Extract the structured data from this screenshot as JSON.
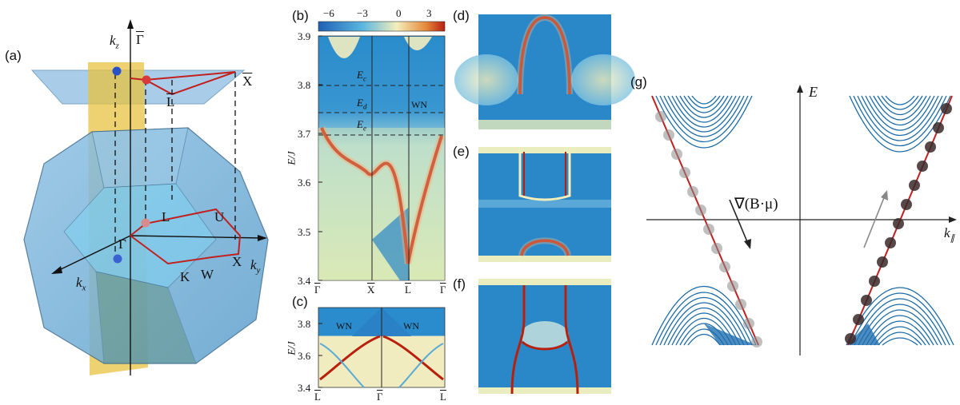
{
  "panels": {
    "a": "(a)",
    "b": "(b)",
    "c": "(c)",
    "d": "(d)",
    "e": "(e)",
    "f": "(f)",
    "g": "(g)"
  },
  "panel_a": {
    "kz": "k",
    "kz_sub": "z",
    "kx": "k",
    "kx_sub": "x",
    "ky": "k",
    "ky_sub": "y",
    "gamma_bar": "Γ",
    "x_bar": "X",
    "l_bar": "L",
    "points": {
      "L": "L",
      "U": "U",
      "Gamma": "Γ",
      "X": "X",
      "K": "K",
      "W": "W"
    }
  },
  "chart_data": [
    {
      "id": "b",
      "type": "heatmap",
      "colorbar_ticks": [
        "−6",
        "−3",
        "0",
        "3"
      ],
      "ylabel": "E/J",
      "yticks": [
        "3.9",
        "3.8",
        "3.7",
        "3.6",
        "3.5",
        "3.4"
      ],
      "ylim": [
        3.4,
        3.9
      ],
      "xticks": [
        "Γ",
        "X",
        "L",
        "Γ"
      ],
      "dashed_lines": [
        {
          "label": "E",
          "sub": "c",
          "y": 3.8
        },
        {
          "label": "E",
          "sub": "d",
          "y": 3.745
        },
        {
          "label": "E",
          "sub": "e",
          "y": 3.7
        }
      ],
      "annotation": "WN"
    },
    {
      "id": "c",
      "type": "heatmap",
      "ylabel": "E/J",
      "yticks": [
        "3.8",
        "3.6",
        "3.4"
      ],
      "ylim": [
        3.4,
        3.9
      ],
      "xticks": [
        "L",
        "Γ",
        "L"
      ],
      "annotations": [
        "WN",
        "WN"
      ]
    }
  ],
  "panel_g": {
    "e_axis": "E",
    "k_axis": "k",
    "k_sub": "∥",
    "gradient_label": "∇(B·μ)"
  },
  "colors": {
    "blue_deep": "#1f7ec4",
    "blue_light": "#6cc0e8",
    "yellow": "#f4eebb",
    "red": "#c02020",
    "slab_yellow": "#e8c240",
    "plane_blue": "#a9cde8"
  }
}
